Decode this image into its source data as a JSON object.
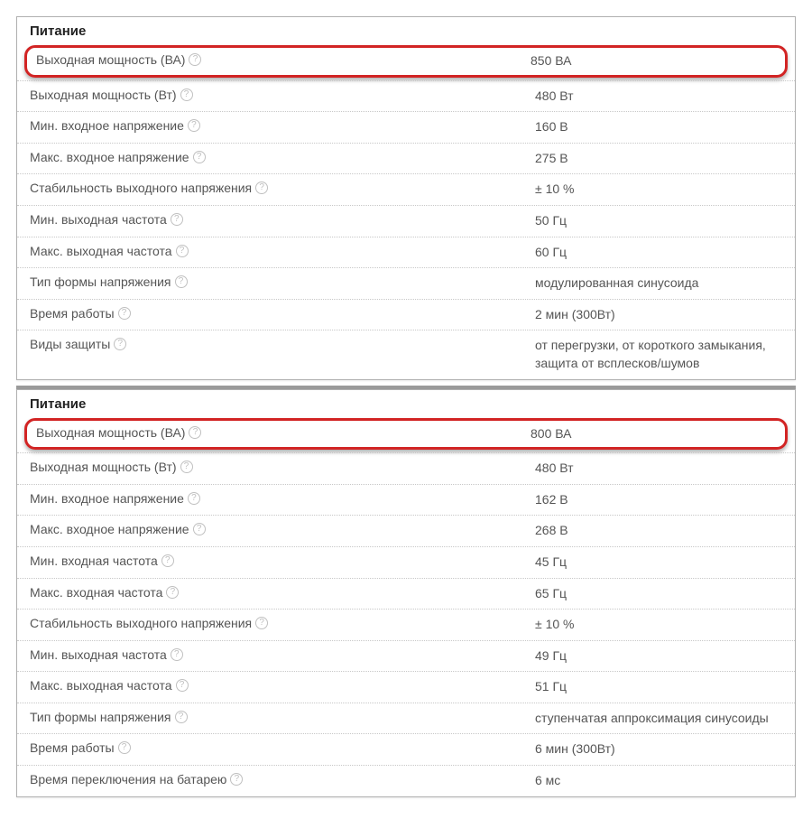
{
  "colors": {
    "highlight_border": "#d22424",
    "panel_border": "#b0b0b0",
    "text": "#555555",
    "header_text": "#222222",
    "dotted_border": "#c8c8c8",
    "help_icon": "#c0c0c0",
    "divider": "#9a9a9a"
  },
  "panel1": {
    "title": "Питание",
    "highlight": {
      "label": "Выходная мощность (ВА)",
      "value": "850 ВА",
      "help": true
    },
    "rows": [
      {
        "label": "Выходная мощность (Вт)",
        "value": "480 Вт",
        "help": true
      },
      {
        "label": "Мин. входное напряжение",
        "value": "160 В",
        "help": true
      },
      {
        "label": "Макс. входное напряжение",
        "value": "275 В",
        "help": true
      },
      {
        "label": "Стабильность выходного напряжения",
        "value": "± 10 %",
        "help": true
      },
      {
        "label": "Мин. выходная частота",
        "value": "50 Гц",
        "help": true
      },
      {
        "label": "Макс. выходная частота",
        "value": "60 Гц",
        "help": true
      },
      {
        "label": "Тип формы напряжения",
        "value": "модулированная синусоида",
        "help": true
      },
      {
        "label": "Время работы",
        "value": "2 мин (300Вт)",
        "help": true
      },
      {
        "label": "Виды защиты",
        "value": "от перегрузки, от короткого замыкания, защита от всплесков/шумов",
        "help": true
      }
    ]
  },
  "panel2": {
    "title": "Питание",
    "highlight": {
      "label": "Выходная мощность (ВА)",
      "value": "800 ВА",
      "help": true
    },
    "rows": [
      {
        "label": "Выходная мощность (Вт)",
        "value": "480 Вт",
        "help": true
      },
      {
        "label": "Мин. входное напряжение",
        "value": "162 В",
        "help": true
      },
      {
        "label": "Макс. входное напряжение",
        "value": "268 В",
        "help": true
      },
      {
        "label": "Мин. входная частота",
        "value": "45 Гц",
        "help": true
      },
      {
        "label": "Макс. входная частота",
        "value": "65 Гц",
        "help": true
      },
      {
        "label": "Стабильность выходного напряжения",
        "value": "± 10 %",
        "help": true
      },
      {
        "label": "Мин. выходная частота",
        "value": "49 Гц",
        "help": true
      },
      {
        "label": "Макс. выходная частота",
        "value": "51 Гц",
        "help": true
      },
      {
        "label": "Тип формы напряжения",
        "value": "ступенчатая аппроксимация синусоиды",
        "help": true
      },
      {
        "label": "Время работы",
        "value": "6 мин (300Вт)",
        "help": true
      },
      {
        "label": "Время переключения на батарею",
        "value": "6 мс",
        "help": true
      }
    ]
  }
}
